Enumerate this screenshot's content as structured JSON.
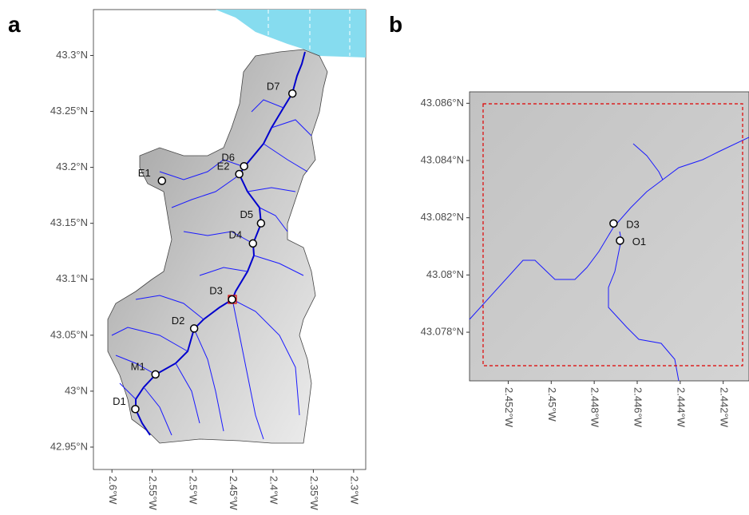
{
  "panels": [
    {
      "label": "a",
      "xlim": [
        -2.623,
        -2.285
      ],
      "ylim": [
        42.93,
        43.341
      ],
      "xticks": [
        {
          "value": -2.6,
          "label": "2.6°W"
        },
        {
          "value": -2.55,
          "label": "2.55°W"
        },
        {
          "value": -2.5,
          "label": "2.5°W"
        },
        {
          "value": -2.45,
          "label": "2.45°W"
        },
        {
          "value": -2.4,
          "label": "2.4°W"
        },
        {
          "value": -2.35,
          "label": "2.35°W"
        },
        {
          "value": -2.3,
          "label": "2.3°W"
        }
      ],
      "yticks": [
        {
          "value": 43.3,
          "label": "43.3°N"
        },
        {
          "value": 43.25,
          "label": "43.25°N"
        },
        {
          "value": 43.2,
          "label": "43.2°N"
        },
        {
          "value": 43.15,
          "label": "43.15°N"
        },
        {
          "value": 43.1,
          "label": "43.1°N"
        },
        {
          "value": 43.05,
          "label": "43.05°N"
        },
        {
          "value": 43.0,
          "label": "43°N"
        },
        {
          "value": 42.95,
          "label": "42.95°N"
        }
      ],
      "points": [
        {
          "label": "D7",
          "lon": -2.376,
          "lat": 43.266
        },
        {
          "label": "D6",
          "lon": -2.436,
          "lat": 43.201
        },
        {
          "label": "E2",
          "lon": -2.442,
          "lat": 43.194
        },
        {
          "label": "E1",
          "lon": -2.538,
          "lat": 43.188
        },
        {
          "label": "D5",
          "lon": -2.415,
          "lat": 43.15
        },
        {
          "label": "D4",
          "lon": -2.425,
          "lat": 43.132
        },
        {
          "label": "D3",
          "lon": -2.451,
          "lat": 43.082
        },
        {
          "label": "D2",
          "lon": -2.498,
          "lat": 43.056
        },
        {
          "label": "M1",
          "lon": -2.546,
          "lat": 43.015
        },
        {
          "label": "D1",
          "lon": -2.571,
          "lat": 42.984
        }
      ]
    },
    {
      "label": "b",
      "xlim": [
        -2.4538,
        -2.4408
      ],
      "ylim": [
        43.0763,
        43.0864
      ],
      "xticks": [
        {
          "value": -2.452,
          "label": "2.452°W"
        },
        {
          "value": -2.45,
          "label": "2.45°W"
        },
        {
          "value": -2.448,
          "label": "2.448°W"
        },
        {
          "value": -2.446,
          "label": "2.446°W"
        },
        {
          "value": -2.444,
          "label": "2.444°W"
        },
        {
          "value": -2.442,
          "label": "2.442°W"
        }
      ],
      "yticks": [
        {
          "value": 43.086,
          "label": "43.086°N"
        },
        {
          "value": 43.084,
          "label": "43.084°N"
        },
        {
          "value": 43.082,
          "label": "43.082°N"
        },
        {
          "value": 43.08,
          "label": "43.08°N"
        },
        {
          "value": 43.078,
          "label": "43.078°N"
        }
      ],
      "points": [
        {
          "label": "D3",
          "lon": -2.4471,
          "lat": 43.0818
        },
        {
          "label": "O1",
          "lon": -2.4468,
          "lat": 43.0812
        }
      ]
    }
  ]
}
